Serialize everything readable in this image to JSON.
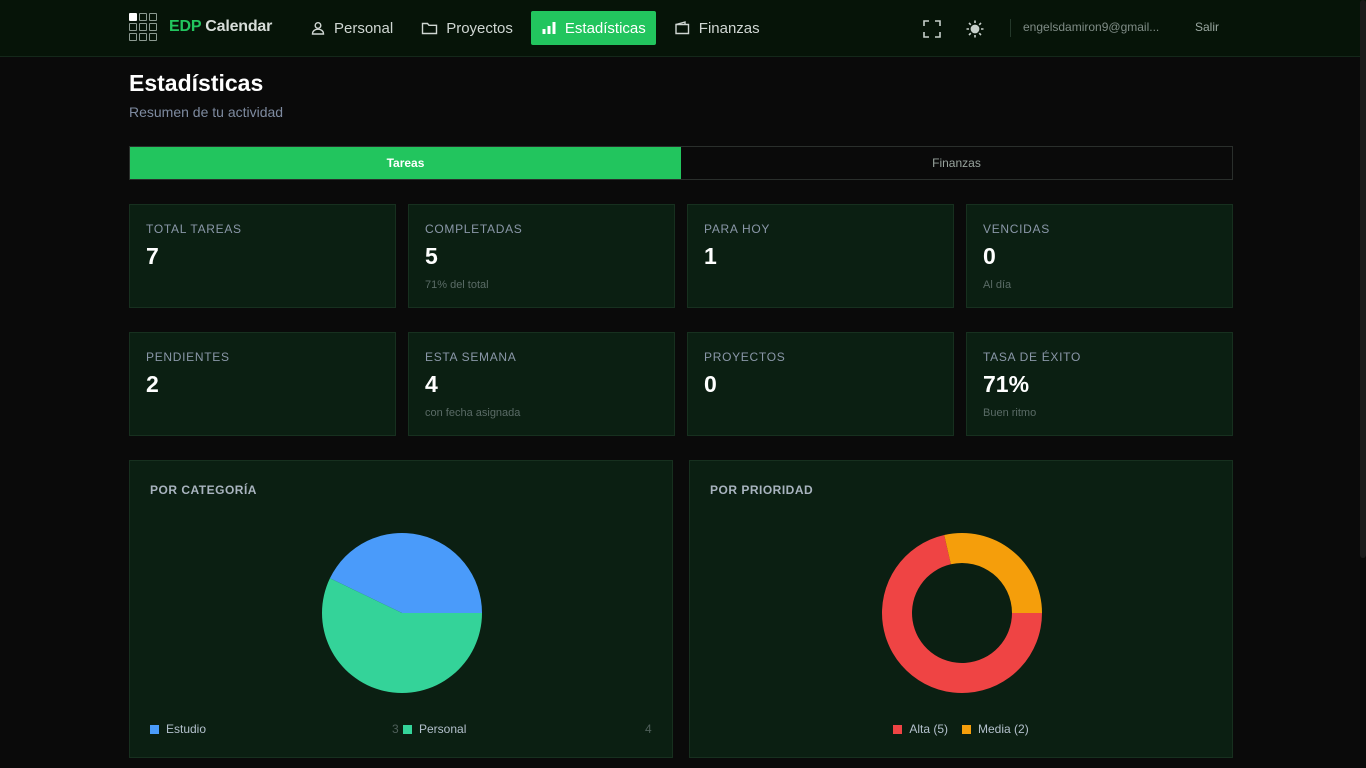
{
  "header": {
    "brand_accent": "EDP",
    "brand_rest": "Calendar",
    "nav": [
      {
        "label": "Personal",
        "icon": "user-icon"
      },
      {
        "label": "Proyectos",
        "icon": "folder-icon"
      },
      {
        "label": "Estadísticas",
        "icon": "bar-chart-icon",
        "active": true
      },
      {
        "label": "Finanzas",
        "icon": "wallet-icon"
      }
    ],
    "email": "engelsdamiron9@gmail...",
    "logout_label": "Salir"
  },
  "page": {
    "title": "Estadísticas",
    "subtitle": "Resumen de tu actividad"
  },
  "tabs": [
    {
      "label": "Tareas",
      "active": true
    },
    {
      "label": "Finanzas",
      "active": false
    }
  ],
  "stats": [
    {
      "label": "Total tareas",
      "value": "7",
      "note": ""
    },
    {
      "label": "Completadas",
      "value": "5",
      "note": "71% del total"
    },
    {
      "label": "Para hoy",
      "value": "1",
      "note": ""
    },
    {
      "label": "Vencidas",
      "value": "0",
      "note": "Al día"
    },
    {
      "label": "Pendientes",
      "value": "2",
      "note": ""
    },
    {
      "label": "Esta semana",
      "value": "4",
      "note": "con fecha asignada"
    },
    {
      "label": "Proyectos",
      "value": "0",
      "note": ""
    },
    {
      "label": "Tasa de éxito",
      "value": "71%",
      "note": "Buen ritmo"
    }
  ],
  "panels": {
    "category_title": "POR CATEGORÍA",
    "priority_title": "POR PRIORIDAD"
  },
  "colors": {
    "accent": "#22c55e",
    "estudio": "#4a9bfa",
    "personal": "#34d399",
    "alta": "#ef4444",
    "media": "#f59e0b"
  },
  "chart_data": [
    {
      "type": "pie",
      "title": "POR CATEGORÍA",
      "categories": [
        "Estudio",
        "Personal"
      ],
      "values": [
        3,
        4
      ],
      "legend": "bottom"
    },
    {
      "type": "pie",
      "variant": "donut",
      "title": "POR PRIORIDAD",
      "categories": [
        "Alta",
        "Media"
      ],
      "values": [
        5,
        2
      ],
      "legend_labels": [
        "Alta (5)",
        "Media (2)"
      ],
      "legend": "bottom"
    }
  ]
}
